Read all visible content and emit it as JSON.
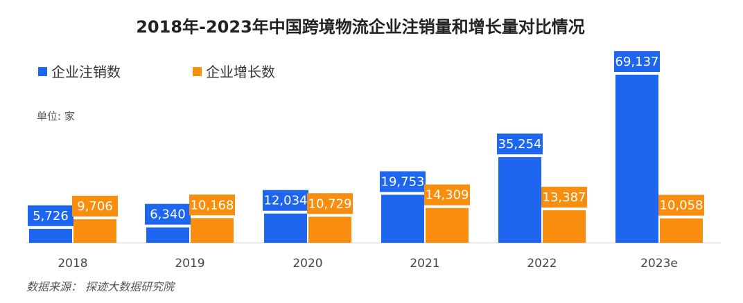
{
  "chart_data": {
    "type": "bar",
    "title": "2018年-2023年中国跨境物流企业注销量和增长量对比情况",
    "unit_label": "单位: 家",
    "source": "数据来源：  探迹大数据研究院",
    "categories": [
      "2018",
      "2019",
      "2020",
      "2021",
      "2022",
      "2023e"
    ],
    "series": [
      {
        "name": "企业注销数",
        "color": "#1E66F0",
        "values": [
          5726,
          6340,
          12034,
          19753,
          35254,
          69137
        ],
        "labels": [
          "5,726",
          "6,340",
          "12,034",
          "19,753",
          "35,254",
          "69,137"
        ]
      },
      {
        "name": "企业增长数",
        "color": "#F98E0E",
        "values": [
          9706,
          10168,
          10729,
          14309,
          13387,
          10058
        ],
        "labels": [
          "9,706",
          "10,168",
          "10,729",
          "14,309",
          "13,387",
          "10,058"
        ]
      }
    ],
    "ylim": [
      0,
      80000
    ],
    "grid": false,
    "legend_position": "top-left"
  }
}
